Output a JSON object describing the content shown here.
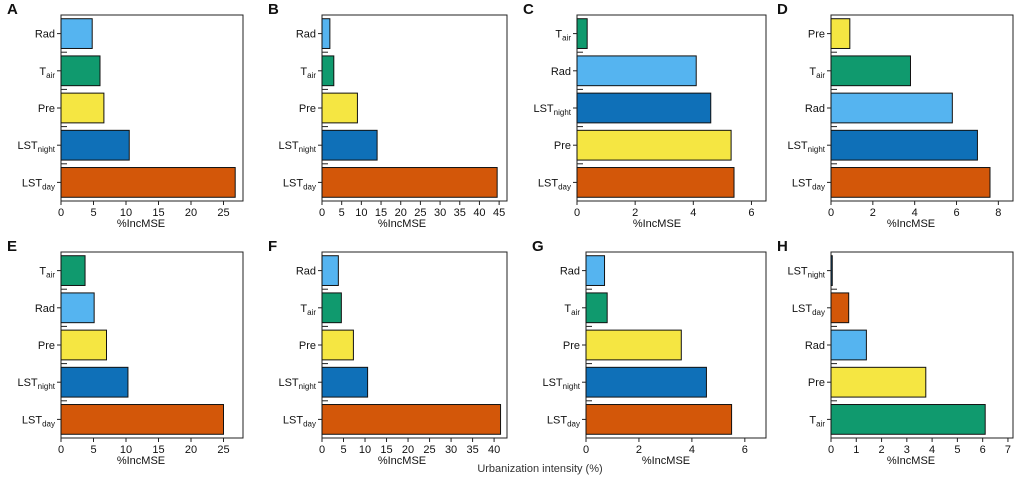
{
  "figure": {
    "footer_label": "Urbanization intensity (%)"
  },
  "colors": {
    "Rad": "#55b4f0",
    "T_air": "#109a6e",
    "Pre": "#f5e642",
    "LST_night": "#0f70b8",
    "LST_day": "#d35709"
  },
  "chart_data": [
    {
      "type": "bar",
      "orientation": "horizontal",
      "letter": "A",
      "xlabel": "%IncMSE",
      "categories": [
        "Rad",
        "T_air",
        "Pre",
        "LST_night",
        "LST_day"
      ],
      "values": [
        4.8,
        6.0,
        6.6,
        10.5,
        26.8
      ],
      "xlim": [
        0,
        28
      ],
      "ticks": [
        0,
        5,
        10,
        15,
        20,
        25
      ]
    },
    {
      "type": "bar",
      "orientation": "horizontal",
      "letter": "B",
      "xlabel": "%IncMSE",
      "categories": [
        "Rad",
        "T_air",
        "Pre",
        "LST_night",
        "LST_day"
      ],
      "values": [
        2.0,
        3.0,
        9.0,
        14.0,
        44.5
      ],
      "xlim": [
        0,
        47
      ],
      "ticks": [
        0,
        5,
        10,
        15,
        20,
        25,
        30,
        35,
        40,
        45
      ]
    },
    {
      "type": "bar",
      "orientation": "horizontal",
      "letter": "C",
      "xlabel": "%IncMSE",
      "categories": [
        "T_air",
        "Rad",
        "LST_night",
        "Pre",
        "LST_day"
      ],
      "values": [
        0.35,
        4.1,
        4.6,
        5.3,
        5.4
      ],
      "xlim": [
        0,
        6.5
      ],
      "ticks": [
        0,
        2,
        4,
        6
      ]
    },
    {
      "type": "bar",
      "orientation": "horizontal",
      "letter": "D",
      "xlabel": "%IncMSE",
      "categories": [
        "Pre",
        "T_air",
        "Rad",
        "LST_night",
        "LST_day"
      ],
      "values": [
        0.9,
        3.8,
        5.8,
        7.0,
        7.6
      ],
      "xlim": [
        0,
        8.7
      ],
      "ticks": [
        0,
        2,
        4,
        6,
        8
      ]
    },
    {
      "type": "bar",
      "orientation": "horizontal",
      "letter": "E",
      "xlabel": "%IncMSE",
      "categories": [
        "T_air",
        "Rad",
        "Pre",
        "LST_night",
        "LST_day"
      ],
      "values": [
        3.7,
        5.1,
        7.0,
        10.3,
        25.0
      ],
      "xlim": [
        0,
        28
      ],
      "ticks": [
        0,
        5,
        10,
        15,
        20,
        25
      ]
    },
    {
      "type": "bar",
      "orientation": "horizontal",
      "letter": "F",
      "xlabel": "%IncMSE",
      "categories": [
        "Rad",
        "T_air",
        "Pre",
        "LST_night",
        "LST_day"
      ],
      "values": [
        3.8,
        4.5,
        7.3,
        10.6,
        41.5
      ],
      "xlim": [
        0,
        43
      ],
      "ticks": [
        0,
        5,
        10,
        15,
        20,
        25,
        30,
        35,
        40
      ]
    },
    {
      "type": "bar",
      "orientation": "horizontal",
      "letter": "G",
      "xlabel": "%IncMSE",
      "categories": [
        "Rad",
        "T_air",
        "Pre",
        "LST_night",
        "LST_day"
      ],
      "values": [
        0.7,
        0.8,
        3.6,
        4.55,
        5.5
      ],
      "xlim": [
        0,
        6.8
      ],
      "ticks": [
        0,
        2,
        4,
        6
      ]
    },
    {
      "type": "bar",
      "orientation": "horizontal",
      "letter": "H",
      "xlabel": "%IncMSE",
      "categories": [
        "LST_night",
        "LST_day",
        "Rad",
        "Pre",
        "T_air"
      ],
      "values": [
        0.05,
        0.7,
        1.4,
        3.75,
        6.1
      ],
      "xlim": [
        0,
        7.2
      ],
      "ticks": [
        0,
        1,
        2,
        3,
        4,
        5,
        6,
        7
      ]
    }
  ]
}
